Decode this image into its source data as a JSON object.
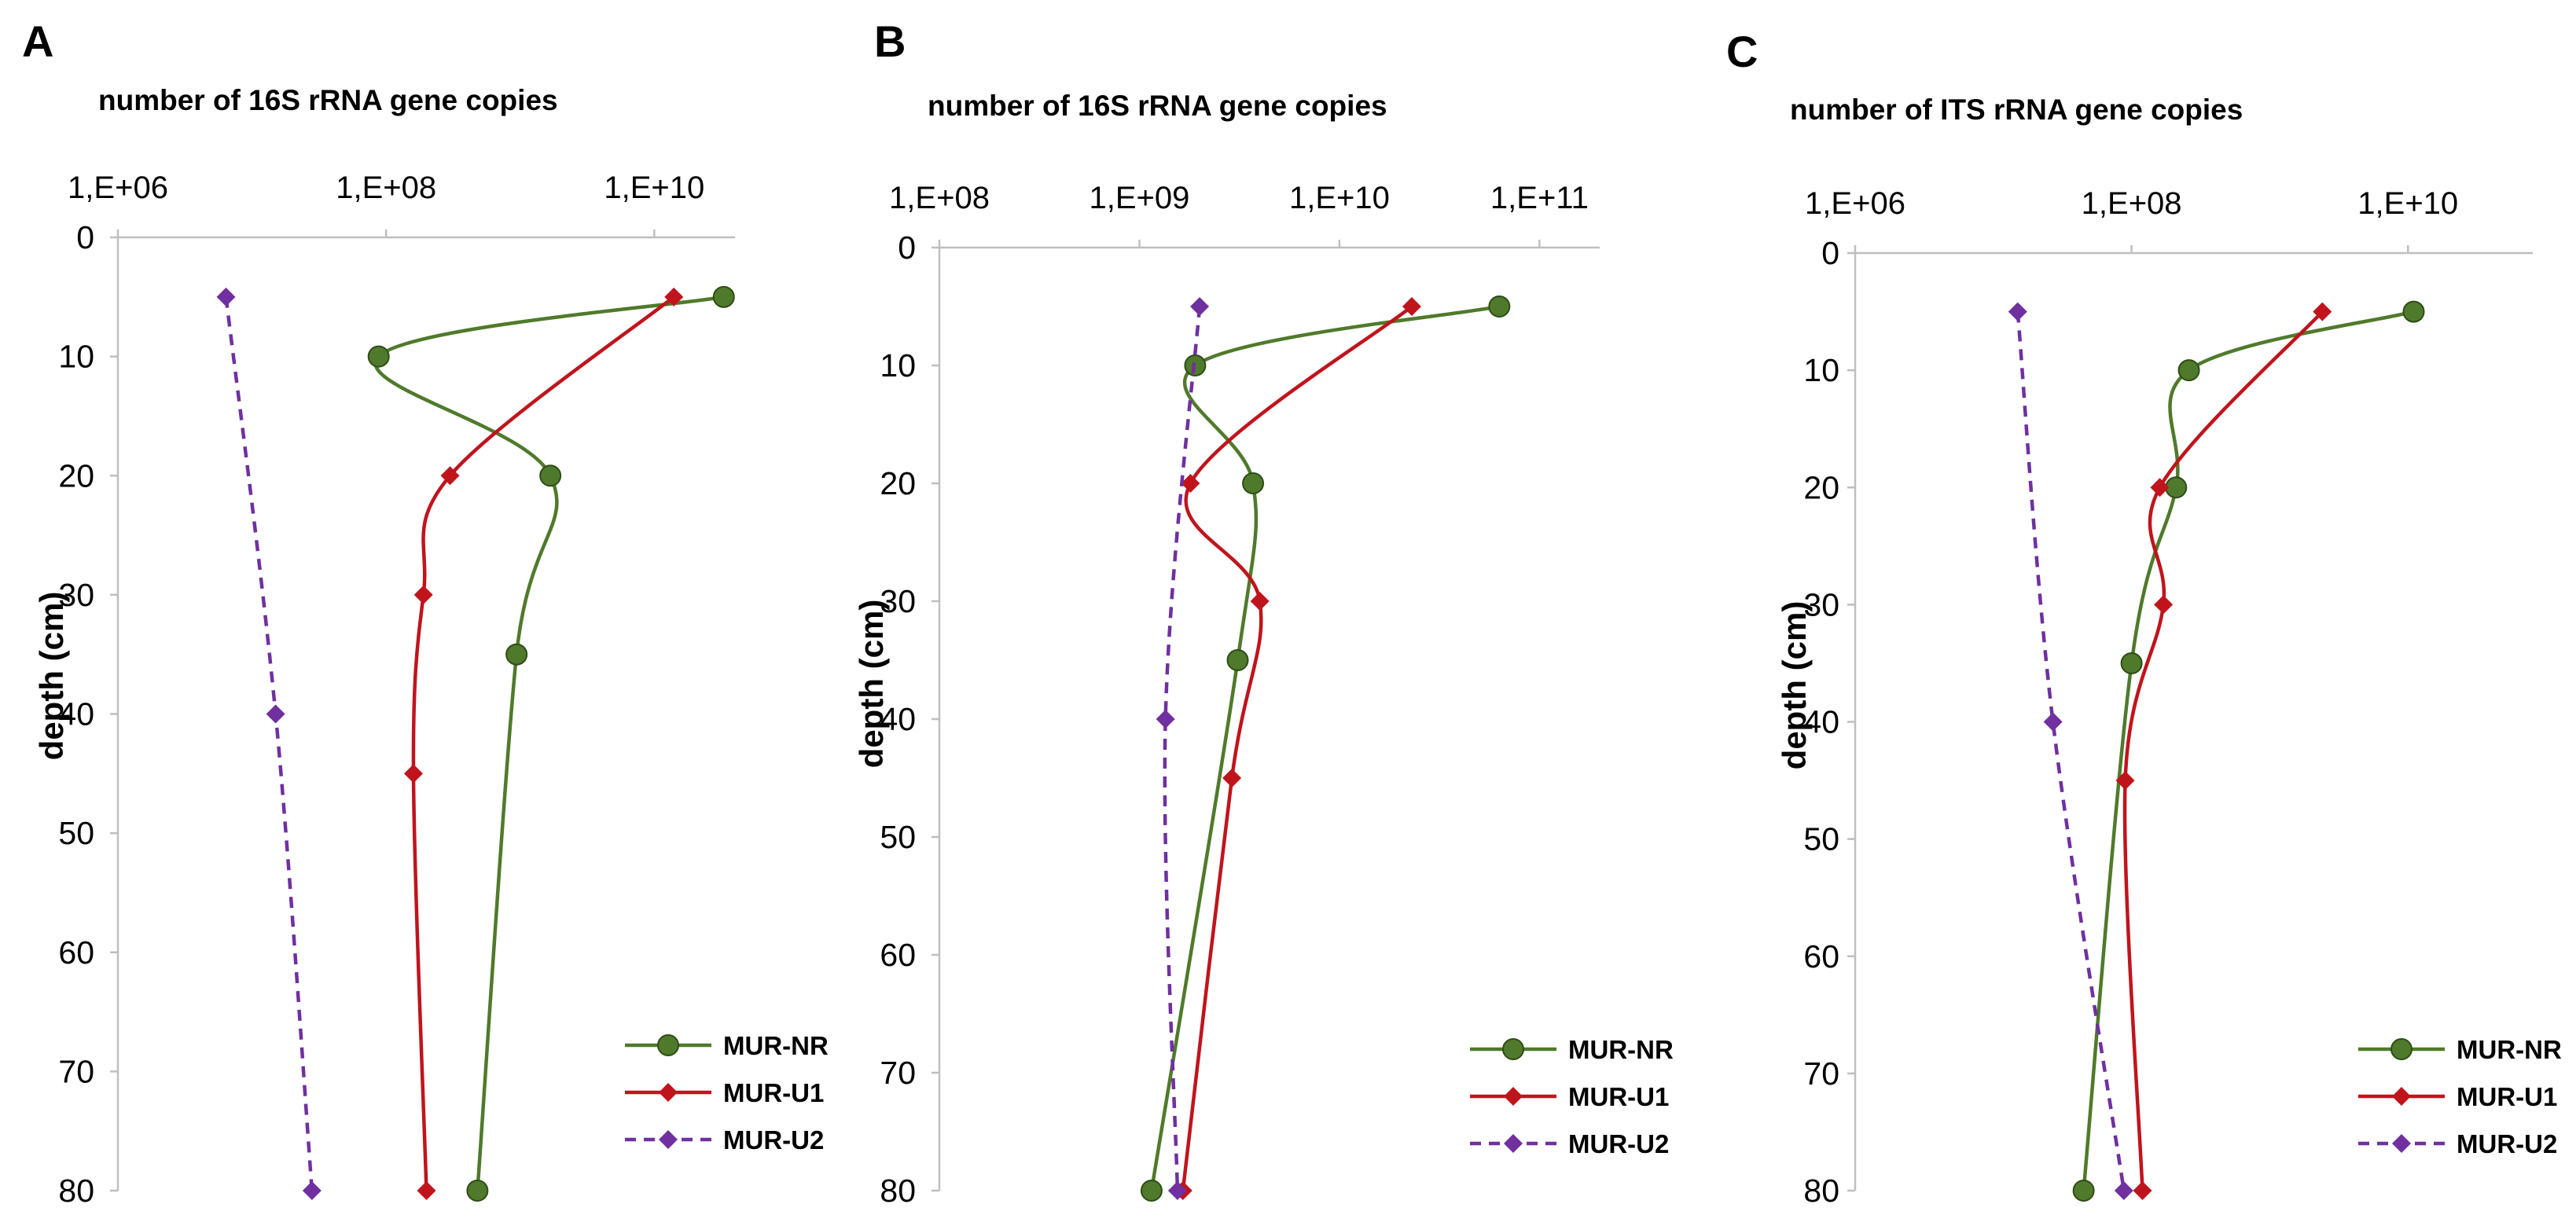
{
  "chart_data": [
    {
      "type": "line",
      "panel_label": "A",
      "title": "number of 16S rRNA gene copies",
      "xlabel": "number of 16S rRNA gene copies",
      "ylabel": "depth (cm)",
      "xscale": "log",
      "xlim": [
        1000000,
        40000000000
      ],
      "x_tick_values": [
        1000000,
        100000000,
        10000000000
      ],
      "x_tick_labels": [
        "1,E+06",
        "1,E+08",
        "1,E+10"
      ],
      "ylim": [
        0,
        80
      ],
      "y_inverted": true,
      "y_ticks": [
        0,
        10,
        20,
        30,
        40,
        50,
        60,
        70,
        80
      ],
      "x_axis_position": "top",
      "grid": false,
      "legend_position": "bottom-right",
      "series": [
        {
          "name": "MUR-NR",
          "color": "#4f7a2b",
          "marker": "circle",
          "dashed": false,
          "points": [
            [
              33000000000,
              5
            ],
            [
              88000000,
              10
            ],
            [
              1680000000,
              20
            ],
            [
              940000000,
              35
            ],
            [
              480000000,
              80
            ]
          ]
        },
        {
          "name": "MUR-U1",
          "color": "#c0141c",
          "marker": "diamond",
          "dashed": false,
          "points": [
            [
              14000000000,
              5
            ],
            [
              300000000,
              20
            ],
            [
              190000000,
              30
            ],
            [
              160000000,
              45
            ],
            [
              200000000,
              80
            ]
          ]
        },
        {
          "name": "MUR-U2",
          "color": "#7030a0",
          "marker": "diamond",
          "dashed": true,
          "points": [
            [
              6400000,
              5
            ],
            [
              15000000,
              40
            ],
            [
              28000000,
              80
            ]
          ]
        }
      ]
    },
    {
      "type": "line",
      "panel_label": "B",
      "title": "number of 16S rRNA gene copies",
      "xlabel": "number of 16S rRNA gene copies",
      "ylabel": "depth (cm)",
      "xscale": "log",
      "xlim": [
        100000000,
        200000000000
      ],
      "x_tick_values": [
        100000000,
        1000000000,
        10000000000,
        100000000000
      ],
      "x_tick_labels": [
        "1,E+08",
        "1,E+09",
        "1,E+10",
        "1,E+11"
      ],
      "ylim": [
        0,
        80
      ],
      "y_inverted": true,
      "y_ticks": [
        0,
        10,
        20,
        30,
        40,
        50,
        60,
        70,
        80
      ],
      "x_axis_position": "top",
      "grid": false,
      "legend_position": "bottom-right",
      "series": [
        {
          "name": "MUR-NR",
          "color": "#4f7a2b",
          "marker": "circle",
          "dashed": false,
          "points": [
            [
              63000000000,
              5
            ],
            [
              1900000000,
              10
            ],
            [
              3700000000,
              20
            ],
            [
              3100000000,
              35
            ],
            [
              1150000000,
              80
            ]
          ]
        },
        {
          "name": "MUR-U1",
          "color": "#c0141c",
          "marker": "diamond",
          "dashed": false,
          "points": [
            [
              23000000000,
              5
            ],
            [
              1800000000,
              20
            ],
            [
              4000000000,
              30
            ],
            [
              2900000000,
              45
            ],
            [
              1650000000,
              80
            ]
          ]
        },
        {
          "name": "MUR-U2",
          "color": "#7030a0",
          "marker": "diamond",
          "dashed": true,
          "points": [
            [
              2000000000,
              5
            ],
            [
              1350000000,
              40
            ],
            [
              1550000000,
              80
            ]
          ]
        }
      ]
    },
    {
      "type": "line",
      "panel_label": "C",
      "title": "number of ITS rRNA gene copies",
      "xlabel": "number of ITS rRNA gene copies",
      "ylabel": "depth (cm)",
      "xscale": "log",
      "xlim": [
        1000000,
        80000000000
      ],
      "x_tick_values": [
        1000000,
        100000000,
        10000000000
      ],
      "x_tick_labels": [
        "1,E+06",
        "1,E+08",
        "1,E+10"
      ],
      "ylim": [
        0,
        80
      ],
      "y_inverted": true,
      "y_ticks": [
        0,
        10,
        20,
        30,
        40,
        50,
        60,
        70,
        80
      ],
      "x_axis_position": "top",
      "grid": false,
      "legend_position": "bottom-right",
      "series": [
        {
          "name": "MUR-NR",
          "color": "#4f7a2b",
          "marker": "circle",
          "dashed": false,
          "points": [
            [
              11000000000,
              5
            ],
            [
              260000000,
              10
            ],
            [
              210000000,
              20
            ],
            [
              100000000,
              35
            ],
            [
              45000000,
              80
            ]
          ]
        },
        {
          "name": "MUR-U1",
          "color": "#c0141c",
          "marker": "diamond",
          "dashed": false,
          "points": [
            [
              2400000000,
              5
            ],
            [
              160000000,
              20
            ],
            [
              170000000,
              30
            ],
            [
              90000000,
              45
            ],
            [
              120000000,
              80
            ]
          ]
        },
        {
          "name": "MUR-U2",
          "color": "#7030a0",
          "marker": "diamond",
          "dashed": true,
          "points": [
            [
              15000000,
              5
            ],
            [
              27000000,
              40
            ],
            [
              88000000,
              80
            ]
          ]
        }
      ]
    }
  ]
}
